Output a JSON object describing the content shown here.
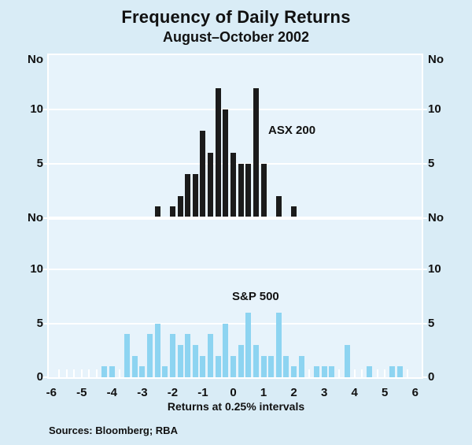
{
  "header": {
    "title": "Frequency of Daily Returns",
    "subtitle": "August–October 2002"
  },
  "colors": {
    "outer_background": "#d9ecf6",
    "plot_background": "#e7f3fb",
    "gridline": "#ffffff",
    "asx_bar": "#1b1b1b",
    "sp_bar": "#8dd4f1",
    "text": "#111111"
  },
  "y_axis": {
    "left_labels": [
      "No",
      "10",
      "5",
      "No",
      "10",
      "5",
      "0"
    ],
    "right_labels": [
      "No",
      "10",
      "5",
      "No",
      "10",
      "5",
      "0"
    ]
  },
  "x_axis": {
    "tick_labels": [
      "-6",
      "-5",
      "-4",
      "-3",
      "-2",
      "-1",
      "0",
      "1",
      "2",
      "3",
      "4",
      "5",
      "6"
    ],
    "title": "Returns at 0.25% intervals"
  },
  "footer": {
    "sources": "Sources: Bloomberg; RBA"
  },
  "chart_data": {
    "type": "bar",
    "title": "Frequency of Daily Returns",
    "subtitle": "August–October 2002",
    "xlabel": "Returns at 0.25% intervals",
    "ylabel": "No",
    "x_range": [
      -6,
      6
    ],
    "bin_width": 0.25,
    "grid": "on",
    "panel_ylim": [
      0,
      15
    ],
    "gridline_values": [
      5,
      10
    ],
    "panels": [
      {
        "name": "ASX 200",
        "color": "#1b1b1b",
        "x": [
          -2.5,
          -2.0,
          -1.75,
          -1.5,
          -1.25,
          -1.0,
          -0.75,
          -0.5,
          -0.25,
          0.0,
          0.25,
          0.5,
          0.75,
          1.0,
          1.5,
          2.0
        ],
        "counts": [
          1,
          1,
          2,
          4,
          4,
          8,
          6,
          12,
          10,
          6,
          5,
          5,
          12,
          5,
          2,
          1
        ]
      },
      {
        "name": "S&P 500",
        "color": "#8dd4f1",
        "x": [
          -4.25,
          -4.0,
          -3.5,
          -3.25,
          -3.0,
          -2.75,
          -2.5,
          -2.25,
          -2.0,
          -1.75,
          -1.5,
          -1.25,
          -1.0,
          -0.75,
          -0.5,
          -0.25,
          0.0,
          0.25,
          0.5,
          0.75,
          1.0,
          1.25,
          1.5,
          1.75,
          2.0,
          2.25,
          2.75,
          3.0,
          3.25,
          3.75,
          4.5,
          5.25,
          5.5
        ],
        "counts": [
          1,
          1,
          4,
          2,
          1,
          4,
          5,
          1,
          4,
          3,
          4,
          3,
          2,
          4,
          2,
          5,
          2,
          3,
          6,
          3,
          2,
          2,
          6,
          2,
          1,
          2,
          1,
          1,
          1,
          3,
          1,
          1,
          1
        ]
      }
    ]
  }
}
